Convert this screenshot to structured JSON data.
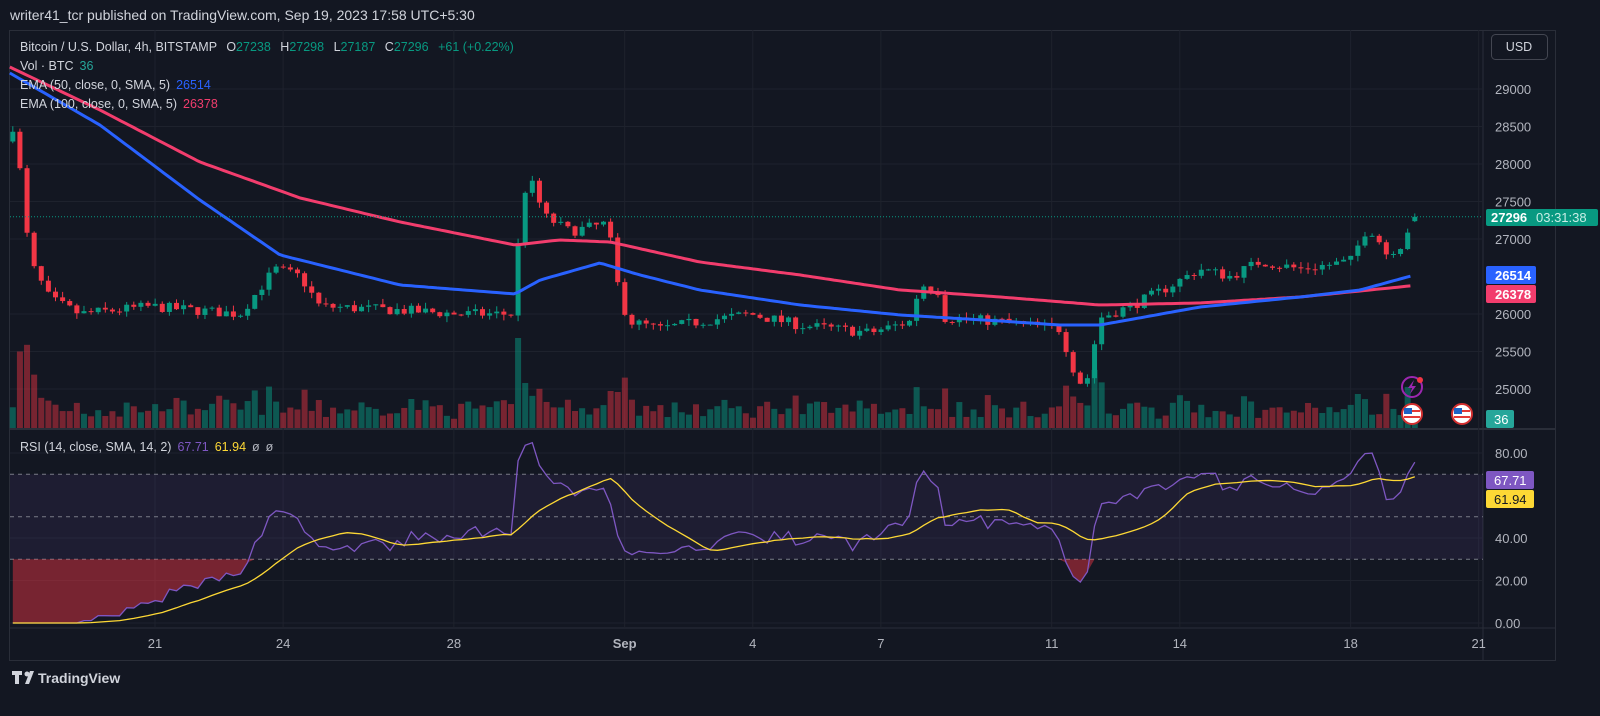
{
  "header": {
    "published": "writer41_tcr published on TradingView.com, Sep 19, 2023 17:58 UTC+5:30"
  },
  "legend": {
    "symbol": "Bitcoin / U.S. Dollar, 4h, BITSTAMP",
    "o_label": "O",
    "o": "27238",
    "h_label": "H",
    "h": "27298",
    "l_label": "L",
    "l": "27187",
    "c_label": "C",
    "c": "27296",
    "change": "+61 (+0.22%)",
    "vol_label": "Vol · BTC",
    "vol": "36",
    "ema50_label": "EMA (50, close, 0, SMA, 5)",
    "ema50": "26514",
    "ema100_label": "EMA (100, close, 0, SMA, 5)",
    "ema100": "26378",
    "rsi_label": "RSI (14, close, SMA, 14, 2)",
    "rsi": "67.71",
    "rsi_sma": "61.94",
    "rsi_extra1": "ø",
    "rsi_extra2": "ø"
  },
  "currency_button": "USD",
  "price_axis": [
    "29000",
    "28500",
    "28000",
    "27500",
    "27000",
    "26000",
    "25500",
    "25000"
  ],
  "price_axis_values": [
    29000,
    28500,
    28000,
    27500,
    27000,
    26000,
    25500,
    25000
  ],
  "last_price": {
    "value": "27296",
    "countdown": "03:31:38"
  },
  "rsi_axis": [
    "80.00",
    "40.00",
    "20.00",
    "0.00"
  ],
  "rsi_axis_values": [
    80,
    40,
    20,
    0
  ],
  "time_axis": [
    {
      "label": "21",
      "day": 21
    },
    {
      "label": "24",
      "day": 24
    },
    {
      "label": "28",
      "day": 28
    },
    {
      "label": "Sep",
      "day": 32
    },
    {
      "label": "4",
      "day": 35
    },
    {
      "label": "7",
      "day": 38
    },
    {
      "label": "11",
      "day": 42
    },
    {
      "label": "14",
      "day": 45
    },
    {
      "label": "18",
      "day": 49
    },
    {
      "label": "21",
      "day": 52
    }
  ],
  "footer": {
    "brand": "TradingView"
  },
  "colors": {
    "up": "#089981",
    "down": "#f23645",
    "ema50": "#2962ff",
    "ema100": "#f23d6d",
    "rsi": "#7e57c2",
    "rsi_sma": "#fdd835",
    "bg": "#131722"
  },
  "chart_data": {
    "type": "candlestick",
    "title": "Bitcoin / U.S. Dollar, 4h, BITSTAMP",
    "x_unit": "day of Aug 2023 (Sep 1 = 32)",
    "ylim": [
      24650,
      29800
    ],
    "rsi_ylim": [
      0,
      85
    ],
    "close_keypoints": [
      [
        17.67,
        28500
      ],
      [
        17.84,
        27900
      ],
      [
        18.07,
        26700
      ],
      [
        18.54,
        26200
      ],
      [
        19.24,
        26000
      ],
      [
        20.88,
        26100
      ],
      [
        22.99,
        26000
      ],
      [
        23.81,
        26600
      ],
      [
        24.4,
        26500
      ],
      [
        24.86,
        26100
      ],
      [
        26.74,
        26050
      ],
      [
        28.14,
        26000
      ],
      [
        29.43,
        26000
      ],
      [
        29.55,
        27500
      ],
      [
        29.78,
        27800
      ],
      [
        30.13,
        27300
      ],
      [
        30.72,
        27100
      ],
      [
        31.54,
        27200
      ],
      [
        31.7,
        26900
      ],
      [
        31.89,
        26200
      ],
      [
        32.12,
        25900
      ],
      [
        32.83,
        25800
      ],
      [
        33.76,
        25900
      ],
      [
        34.93,
        26000
      ],
      [
        36.11,
        25850
      ],
      [
        37.74,
        25750
      ],
      [
        38.68,
        25900
      ],
      [
        38.92,
        26400
      ],
      [
        39.38,
        26300
      ],
      [
        39.5,
        25950
      ],
      [
        40.79,
        25900
      ],
      [
        42.19,
        25800
      ],
      [
        42.55,
        25200
      ],
      [
        42.78,
        25000
      ],
      [
        43.13,
        25950
      ],
      [
        43.83,
        26100
      ],
      [
        44.54,
        26300
      ],
      [
        45.47,
        26600
      ],
      [
        46.18,
        26500
      ],
      [
        46.88,
        26700
      ],
      [
        47.82,
        26600
      ],
      [
        48.99,
        26700
      ],
      [
        49.34,
        27100
      ],
      [
        49.57,
        27100
      ],
      [
        49.81,
        26800
      ],
      [
        50.27,
        26950
      ],
      [
        50.39,
        27250
      ],
      [
        50.46,
        27296
      ]
    ],
    "ema50_keypoints": [
      [
        17.6,
        29213
      ],
      [
        19.71,
        28520
      ],
      [
        22.05,
        27520
      ],
      [
        23.93,
        26787
      ],
      [
        26.74,
        26387
      ],
      [
        29.43,
        26267
      ],
      [
        30.02,
        26453
      ],
      [
        31.42,
        26680
      ],
      [
        32.36,
        26520
      ],
      [
        33.76,
        26320
      ],
      [
        36.11,
        26120
      ],
      [
        38.45,
        25987
      ],
      [
        40.79,
        25907
      ],
      [
        42.19,
        25853
      ],
      [
        43.13,
        25853
      ],
      [
        45.47,
        26093
      ],
      [
        47.82,
        26227
      ],
      [
        49.22,
        26320
      ],
      [
        50.46,
        26514
      ]
    ],
    "ema100_keypoints": [
      [
        17.6,
        29293
      ],
      [
        19.71,
        28720
      ],
      [
        22.05,
        28027
      ],
      [
        24.4,
        27547
      ],
      [
        26.74,
        27227
      ],
      [
        29.43,
        26920
      ],
      [
        30.48,
        26987
      ],
      [
        31.66,
        26960
      ],
      [
        33.76,
        26693
      ],
      [
        36.11,
        26520
      ],
      [
        38.45,
        26320
      ],
      [
        40.79,
        26227
      ],
      [
        43.13,
        26120
      ],
      [
        45.47,
        26147
      ],
      [
        47.82,
        26227
      ],
      [
        50.46,
        26378
      ]
    ],
    "volume_spikes": [
      [
        17.8,
        85
      ],
      [
        29.5,
        100
      ],
      [
        29.6,
        50
      ],
      [
        31.8,
        40
      ],
      [
        42.5,
        35
      ]
    ],
    "rsi_levels": [
      70,
      50,
      30
    ]
  }
}
